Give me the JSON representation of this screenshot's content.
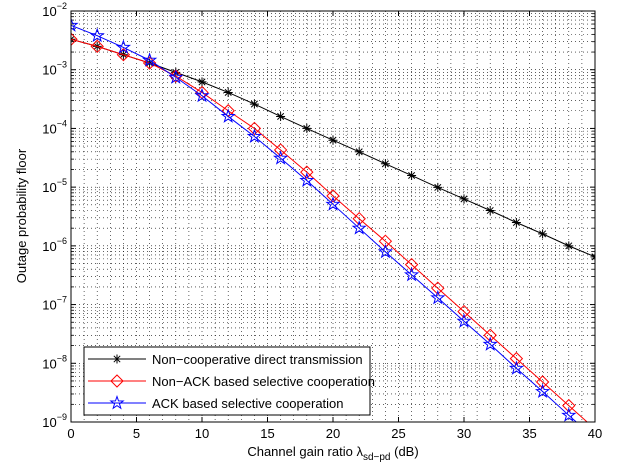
{
  "chart_data": {
    "type": "line",
    "title": "",
    "xlabel": "Channel gain ratio λ",
    "xlabel_subscript": "sd−pd",
    "xlabel_unit": " (dB)",
    "ylabel": "Outage probability floor",
    "y_scale": "log",
    "xlim": [
      0,
      40
    ],
    "ylim": [
      1e-09,
      0.01
    ],
    "grid": true,
    "legend_position": "bottom-left",
    "x_ticks": [
      "0",
      "5",
      "10",
      "15",
      "20",
      "25",
      "30",
      "35",
      "40"
    ],
    "y_ticks": [
      {
        "base": "10",
        "exp": "−9"
      },
      {
        "base": "10",
        "exp": "−8"
      },
      {
        "base": "10",
        "exp": "−7"
      },
      {
        "base": "10",
        "exp": "−6"
      },
      {
        "base": "10",
        "exp": "−5"
      },
      {
        "base": "10",
        "exp": "−4"
      },
      {
        "base": "10",
        "exp": "−3"
      },
      {
        "base": "10",
        "exp": "−2"
      }
    ],
    "x": [
      0,
      2,
      4,
      6,
      8,
      10,
      12,
      14,
      16,
      18,
      20,
      22,
      24,
      26,
      28,
      30,
      32,
      34,
      36,
      38,
      40
    ],
    "series": [
      {
        "name": "Non−cooperative direct transmission",
        "color": "#000000",
        "marker": "asterisk",
        "values": [
          0.0033,
          0.0025,
          0.0018,
          0.0013,
          0.0009,
          0.00062,
          0.00041,
          0.00026,
          0.00016,
          0.0001,
          6.3e-05,
          4e-05,
          2.5e-05,
          1.58e-05,
          9.9e-06,
          6.3e-06,
          4e-06,
          2.5e-06,
          1.6e-06,
          1e-06,
          6.5e-07
        ]
      },
      {
        "name": "Non−ACK based selective cooperation",
        "color": "#ff0000",
        "marker": "diamond",
        "values": [
          0.0033,
          0.0025,
          0.0018,
          0.0013,
          0.00078,
          0.00041,
          0.0002,
          0.0001,
          4.3e-05,
          1.8e-05,
          7.1e-06,
          2.9e-06,
          1.2e-06,
          4.8e-07,
          1.9e-07,
          7.6e-08,
          3e-08,
          1.2e-08,
          4.8e-09,
          1.9e-09,
          7.6e-10
        ]
      },
      {
        "name": "ACK based selective cooperation",
        "color": "#0000ff",
        "marker": "pentagram",
        "values": [
          0.0057,
          0.0038,
          0.0024,
          0.00145,
          0.00074,
          0.00036,
          0.00016,
          7.3e-05,
          3.1e-05,
          1.3e-05,
          5.1e-06,
          2e-06,
          7.9e-07,
          3.2e-07,
          1.3e-07,
          5.2e-08,
          2.1e-08,
          8.2e-09,
          3.3e-09,
          1.3e-09,
          5.2e-10
        ]
      }
    ]
  }
}
